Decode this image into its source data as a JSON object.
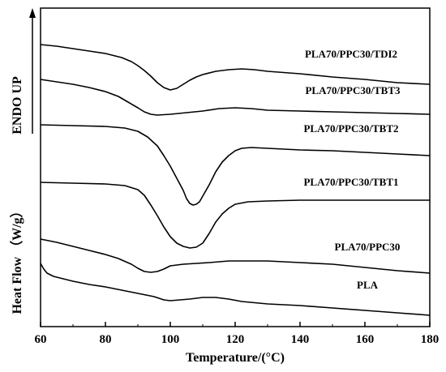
{
  "chart_data": {
    "type": "line",
    "xlabel": "Temperature/(°C)",
    "ylabel_top": "ENDO UP",
    "ylabel_bottom": "Heat Flow （W/g）",
    "xlim": [
      60,
      180
    ],
    "xticks": [
      60,
      80,
      100,
      120,
      140,
      160,
      180
    ],
    "series": [
      {
        "name": "PLA70/PPC30/TDI2",
        "points": [
          [
            60,
            45
          ],
          [
            65,
            47
          ],
          [
            70,
            50
          ],
          [
            75,
            53
          ],
          [
            80,
            56
          ],
          [
            85,
            61
          ],
          [
            88,
            66
          ],
          [
            90,
            71
          ],
          [
            92,
            77
          ],
          [
            94,
            84
          ],
          [
            96,
            92
          ],
          [
            98,
            98
          ],
          [
            100,
            101
          ],
          [
            102,
            99
          ],
          [
            104,
            94
          ],
          [
            106,
            89
          ],
          [
            108,
            85
          ],
          [
            110,
            82
          ],
          [
            114,
            78
          ],
          [
            118,
            76
          ],
          [
            122,
            75
          ],
          [
            126,
            76
          ],
          [
            130,
            78
          ],
          [
            140,
            81
          ],
          [
            150,
            85
          ],
          [
            160,
            88
          ],
          [
            170,
            92
          ],
          [
            180,
            94
          ]
        ]
      },
      {
        "name": "PLA70/PPC30/TBT3",
        "points": [
          [
            60,
            88
          ],
          [
            65,
            91
          ],
          [
            70,
            94
          ],
          [
            75,
            98
          ],
          [
            80,
            103
          ],
          [
            84,
            109
          ],
          [
            87,
            116
          ],
          [
            90,
            123
          ],
          [
            92,
            128
          ],
          [
            94,
            131
          ],
          [
            96,
            132
          ],
          [
            100,
            131
          ],
          [
            105,
            129
          ],
          [
            110,
            127
          ],
          [
            115,
            124
          ],
          [
            120,
            123
          ],
          [
            125,
            124
          ],
          [
            130,
            126
          ],
          [
            140,
            127
          ],
          [
            150,
            128
          ],
          [
            160,
            129
          ],
          [
            170,
            130
          ],
          [
            180,
            131
          ]
        ]
      },
      {
        "name": "PLA70/PPC30/TBT2",
        "points": [
          [
            60,
            144
          ],
          [
            70,
            145
          ],
          [
            80,
            146
          ],
          [
            86,
            148
          ],
          [
            90,
            152
          ],
          [
            93,
            159
          ],
          [
            96,
            170
          ],
          [
            98,
            182
          ],
          [
            100,
            195
          ],
          [
            102,
            210
          ],
          [
            104,
            225
          ],
          [
            105,
            235
          ],
          [
            106,
            241
          ],
          [
            107,
            243
          ],
          [
            108,
            242
          ],
          [
            109,
            239
          ],
          [
            110,
            232
          ],
          [
            112,
            218
          ],
          [
            114,
            202
          ],
          [
            116,
            190
          ],
          [
            118,
            182
          ],
          [
            120,
            176
          ],
          [
            122,
            173
          ],
          [
            125,
            172
          ],
          [
            130,
            173
          ],
          [
            140,
            175
          ],
          [
            150,
            176
          ],
          [
            160,
            178
          ],
          [
            170,
            180
          ],
          [
            180,
            182
          ]
        ]
      },
      {
        "name": "PLA70/PPC30/TBT1",
        "points": [
          [
            60,
            215
          ],
          [
            70,
            216
          ],
          [
            80,
            217
          ],
          [
            86,
            219
          ],
          [
            90,
            224
          ],
          [
            92,
            231
          ],
          [
            94,
            243
          ],
          [
            96,
            256
          ],
          [
            98,
            270
          ],
          [
            100,
            282
          ],
          [
            102,
            290
          ],
          [
            104,
            294
          ],
          [
            106,
            296
          ],
          [
            108,
            295
          ],
          [
            110,
            290
          ],
          [
            112,
            278
          ],
          [
            114,
            264
          ],
          [
            116,
            254
          ],
          [
            118,
            247
          ],
          [
            120,
            242
          ],
          [
            124,
            239
          ],
          [
            130,
            238
          ],
          [
            140,
            237
          ],
          [
            150,
            237
          ],
          [
            160,
            237
          ],
          [
            170,
            237
          ],
          [
            180,
            237
          ]
        ]
      },
      {
        "name": "PLA70/PPC30",
        "points": [
          [
            60,
            285
          ],
          [
            65,
            289
          ],
          [
            70,
            294
          ],
          [
            75,
            299
          ],
          [
            80,
            304
          ],
          [
            84,
            309
          ],
          [
            88,
            316
          ],
          [
            90,
            321
          ],
          [
            92,
            325
          ],
          [
            94,
            326
          ],
          [
            96,
            325
          ],
          [
            98,
            322
          ],
          [
            100,
            318
          ],
          [
            104,
            316
          ],
          [
            108,
            315
          ],
          [
            112,
            314
          ],
          [
            118,
            312
          ],
          [
            125,
            312
          ],
          [
            130,
            312
          ],
          [
            140,
            314
          ],
          [
            150,
            316
          ],
          [
            160,
            320
          ],
          [
            170,
            324
          ],
          [
            180,
            327
          ]
        ]
      },
      {
        "name": "PLA",
        "points": [
          [
            60,
            315
          ],
          [
            61,
            322
          ],
          [
            62,
            327
          ],
          [
            64,
            331
          ],
          [
            67,
            334
          ],
          [
            70,
            337
          ],
          [
            75,
            341
          ],
          [
            80,
            344
          ],
          [
            85,
            348
          ],
          [
            90,
            352
          ],
          [
            95,
            356
          ],
          [
            98,
            360
          ],
          [
            100,
            361
          ],
          [
            103,
            360
          ],
          [
            106,
            359
          ],
          [
            110,
            357
          ],
          [
            114,
            357
          ],
          [
            118,
            359
          ],
          [
            122,
            362
          ],
          [
            130,
            365
          ],
          [
            140,
            367
          ],
          [
            150,
            370
          ],
          [
            160,
            373
          ],
          [
            170,
            376
          ],
          [
            180,
            379
          ]
        ]
      }
    ]
  }
}
